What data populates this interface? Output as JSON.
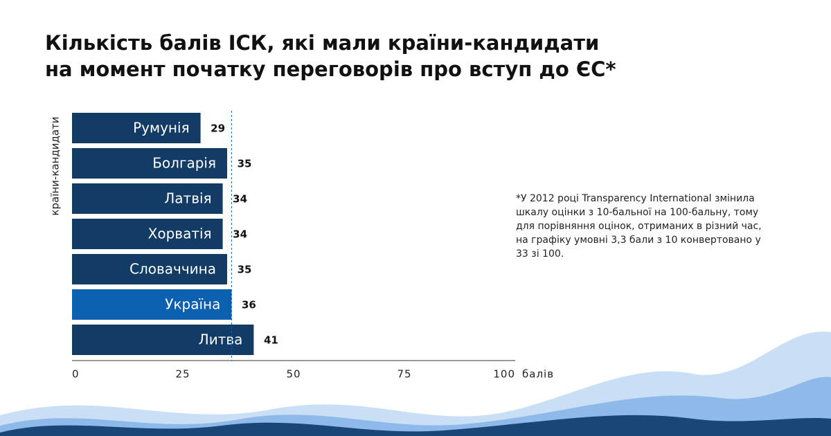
{
  "chart_data": {
    "type": "bar",
    "orientation": "horizontal",
    "title": [
      "Кількість балів ІСК, які мали країни-кандидати",
      "на момент початку переговорів про вступ до ЄС*"
    ],
    "y_label": "країни-кандидати",
    "x_label": "балів",
    "categories": [
      "Румунія",
      "Болгарія",
      "Латвія",
      "Хорватія",
      "Словаччина",
      "Україна",
      "Литва"
    ],
    "values": [
      29,
      35,
      34,
      34,
      35,
      36,
      41
    ],
    "colors": [
      "#123b66",
      "#123b66",
      "#123b66",
      "#123b66",
      "#123b66",
      "#0c60b0",
      "#123b66"
    ],
    "reference_index": 5,
    "xlim": [
      0,
      100
    ],
    "xticks": [
      0,
      25,
      50,
      75,
      100
    ],
    "note": [
      "*У 2012 році Transparency International змінила",
      "шкалу оцінки з 10-бальної на 100-бальну, тому",
      "для порівняння оцінок, отриманих в різний час,",
      "на графіку умовні 3,3 бали з 10 конвертовано у",
      "33 зі 100."
    ]
  }
}
